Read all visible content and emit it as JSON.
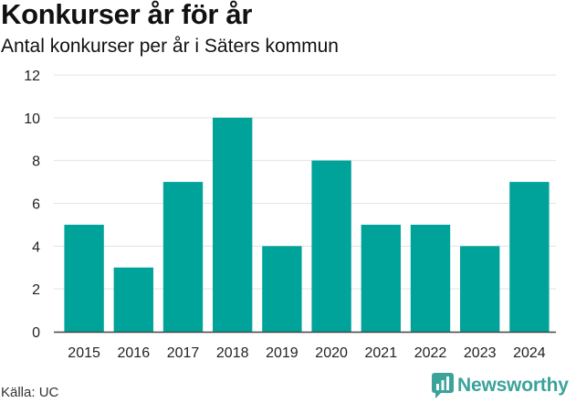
{
  "title": "Konkurser år för år",
  "subtitle": "Antal konkurser per år i Säters kommun",
  "source": "Källa: UC",
  "brand": {
    "name": "Newsworthy",
    "icon": "newsworthy-logo-icon",
    "color": "#3aa39a"
  },
  "colors": {
    "bar": "#00a39a",
    "grid": "#e3e3e3",
    "axis": "#444444"
  },
  "chart_data": {
    "type": "bar",
    "title": "Konkurser år för år",
    "subtitle": "Antal konkurser per år i Säters kommun",
    "categories": [
      "2015",
      "2016",
      "2017",
      "2018",
      "2019",
      "2020",
      "2021",
      "2022",
      "2023",
      "2024"
    ],
    "values": [
      5,
      3,
      7,
      10,
      4,
      8,
      5,
      5,
      4,
      7
    ],
    "yticks": [
      "0",
      "2",
      "4",
      "6",
      "8",
      "10",
      "12"
    ],
    "ylim": [
      0,
      12
    ],
    "grid": true,
    "legend": "none"
  }
}
